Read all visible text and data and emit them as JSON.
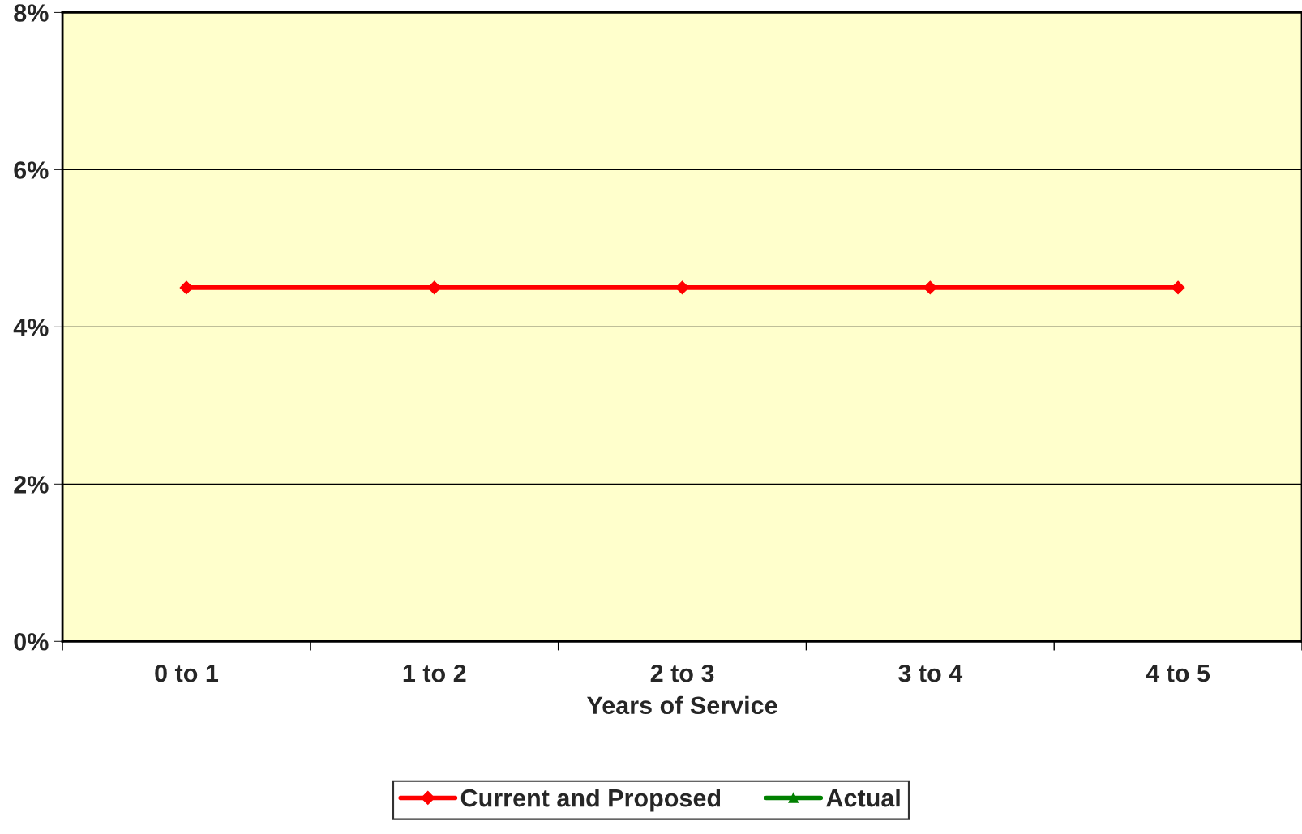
{
  "chart_data": {
    "type": "line",
    "xlabel": "Years of Service",
    "categories": [
      "0 to 1",
      "1 to 2",
      "2 to 3",
      "3 to 4",
      "4 to 5"
    ],
    "series": [
      {
        "name": "Current and Proposed",
        "color": "#ff0000",
        "marker": "diamond",
        "values": [
          4.5,
          4.5,
          4.5,
          4.5,
          4.5
        ]
      },
      {
        "name": "Actual",
        "color": "#008000",
        "marker": "triangle",
        "values": [
          null,
          null,
          null,
          null,
          null
        ]
      }
    ],
    "ylim": [
      0,
      8
    ],
    "yticks": [
      {
        "value": 0,
        "label": "0%"
      },
      {
        "value": 2,
        "label": "2%"
      },
      {
        "value": 4,
        "label": "4%"
      },
      {
        "value": 6,
        "label": "6%"
      },
      {
        "value": 8,
        "label": "8%"
      }
    ],
    "grid": "y",
    "legend": "bottom",
    "line_style": "solid"
  }
}
